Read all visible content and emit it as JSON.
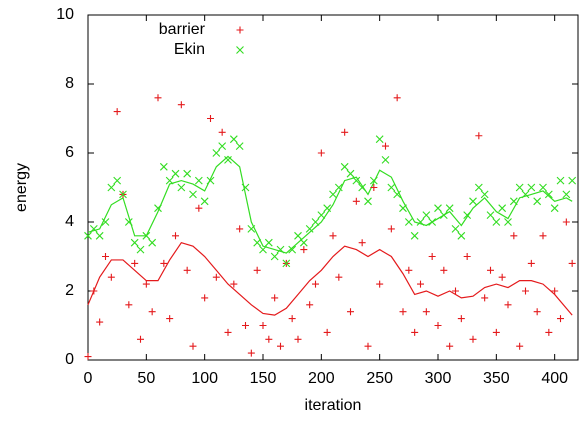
{
  "chart_data": {
    "type": "scatter",
    "xlabel": "iteration",
    "ylabel": "energy",
    "xlim": [
      0,
      420
    ],
    "ylim": [
      0,
      10
    ],
    "xticks": [
      0,
      50,
      100,
      150,
      200,
      250,
      300,
      350,
      400
    ],
    "yticks": [
      0,
      2,
      4,
      6,
      8,
      10
    ],
    "legend": "top-left",
    "x": [
      0,
      5,
      10,
      15,
      20,
      25,
      30,
      35,
      40,
      45,
      50,
      55,
      60,
      65,
      70,
      75,
      80,
      85,
      90,
      95,
      100,
      105,
      110,
      115,
      120,
      125,
      130,
      135,
      140,
      145,
      150,
      155,
      160,
      165,
      170,
      175,
      180,
      185,
      190,
      195,
      200,
      205,
      210,
      215,
      220,
      225,
      230,
      235,
      240,
      245,
      250,
      255,
      260,
      265,
      270,
      275,
      280,
      285,
      290,
      295,
      300,
      305,
      310,
      315,
      320,
      325,
      330,
      335,
      340,
      345,
      350,
      355,
      360,
      365,
      370,
      375,
      380,
      385,
      390,
      395,
      400,
      405,
      410,
      415
    ],
    "series": [
      {
        "name": "barrier",
        "color": "#e41a1c",
        "marker": "plus",
        "values": [
          0.1,
          2.0,
          1.1,
          3.0,
          2.4,
          7.2,
          4.8,
          1.6,
          2.8,
          0.6,
          2.2,
          1.4,
          7.6,
          2.8,
          1.2,
          3.6,
          7.4,
          2.6,
          0.4,
          4.4,
          1.8,
          7.0,
          2.4,
          6.6,
          0.8,
          2.2,
          3.8,
          1.0,
          0.2,
          2.6,
          1.0,
          0.6,
          1.8,
          0.4,
          2.8,
          1.2,
          0.6,
          3.2,
          1.6,
          2.2,
          6.0,
          0.8,
          3.6,
          2.4,
          6.6,
          1.4,
          4.6,
          3.4,
          0.4,
          5.0,
          2.2,
          6.2,
          3.8,
          7.6,
          1.4,
          2.6,
          0.8,
          2.2,
          1.4,
          3.0,
          1.0,
          2.6,
          0.4,
          2.0,
          1.2,
          3.0,
          0.6,
          6.5,
          1.8,
          2.6,
          0.8,
          2.4,
          1.6,
          3.6,
          0.4,
          2.0,
          2.8,
          1.4,
          3.6,
          0.8,
          2.0,
          1.2,
          4.0,
          2.8
        ]
      },
      {
        "name": "Ekin",
        "color": "#33dd22",
        "marker": "cross",
        "values": [
          3.6,
          3.8,
          3.6,
          4.0,
          5.0,
          5.2,
          4.8,
          4.0,
          3.4,
          3.2,
          3.6,
          3.4,
          4.4,
          5.6,
          5.2,
          5.4,
          5.0,
          5.4,
          4.8,
          5.2,
          4.6,
          5.2,
          6.0,
          6.2,
          5.8,
          6.4,
          6.2,
          5.0,
          3.8,
          3.4,
          3.2,
          3.4,
          3.0,
          3.2,
          2.8,
          3.2,
          3.6,
          3.4,
          3.8,
          4.0,
          4.2,
          4.4,
          4.8,
          5.0,
          5.6,
          5.4,
          5.2,
          5.0,
          4.6,
          5.2,
          6.4,
          5.8,
          5.0,
          4.8,
          4.4,
          4.0,
          3.6,
          4.0,
          4.2,
          4.0,
          4.4,
          4.2,
          4.4,
          3.8,
          3.6,
          4.2,
          4.6,
          5.0,
          4.8,
          4.2,
          4.0,
          4.4,
          4.0,
          4.6,
          5.0,
          4.8,
          5.0,
          4.6,
          5.0,
          4.8,
          4.4,
          5.2,
          4.8,
          5.2
        ]
      }
    ],
    "fit_x": [
      0,
      10,
      20,
      30,
      40,
      50,
      60,
      70,
      80,
      90,
      100,
      110,
      120,
      130,
      140,
      150,
      160,
      170,
      180,
      190,
      200,
      210,
      220,
      230,
      240,
      250,
      260,
      270,
      280,
      290,
      300,
      310,
      320,
      330,
      340,
      350,
      360,
      370,
      380,
      390,
      400,
      410,
      415
    ],
    "fits": [
      {
        "color": "#e41a1c",
        "values": [
          1.6,
          2.4,
          2.9,
          2.9,
          2.6,
          2.3,
          2.3,
          2.9,
          3.4,
          3.3,
          3.0,
          2.6,
          2.2,
          1.9,
          1.6,
          1.35,
          1.3,
          1.5,
          1.9,
          2.3,
          2.6,
          3.0,
          3.3,
          3.2,
          3.0,
          3.2,
          3.0,
          2.5,
          1.9,
          2.0,
          1.85,
          2.0,
          1.8,
          1.85,
          2.1,
          2.2,
          2.1,
          2.3,
          2.3,
          2.2,
          1.9,
          1.5,
          1.3
        ]
      },
      {
        "color": "#33dd22",
        "values": [
          3.7,
          3.8,
          4.5,
          4.7,
          3.6,
          3.6,
          4.3,
          5.1,
          5.2,
          5.1,
          4.9,
          5.6,
          5.9,
          5.6,
          4.0,
          3.3,
          3.2,
          3.1,
          3.4,
          3.7,
          4.0,
          4.5,
          5.2,
          5.3,
          4.8,
          5.5,
          5.3,
          4.6,
          4.0,
          3.9,
          4.1,
          4.3,
          3.9,
          4.4,
          4.7,
          4.3,
          4.1,
          4.7,
          4.8,
          4.9,
          4.6,
          4.7,
          4.6
        ]
      }
    ]
  }
}
